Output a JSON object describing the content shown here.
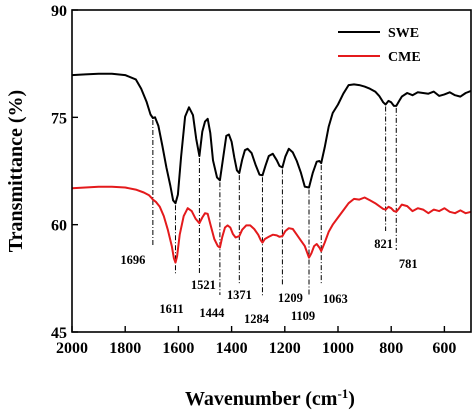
{
  "chart_data": {
    "type": "line",
    "xlabel": "Wavenumber (cm",
    "xlabel_sup": "-1",
    "xlabel_end": ")",
    "ylabel": "Transmittance (%)",
    "xlim": [
      2000,
      500
    ],
    "x_reversed": true,
    "ylim": [
      45,
      90
    ],
    "xticks": [
      "2000",
      "1800",
      "1600",
      "1400",
      "1200",
      "1000",
      "800",
      "600"
    ],
    "yticks": [
      "45",
      "60",
      "75",
      "90"
    ],
    "grid": false,
    "legend_position": "top-right",
    "series": [
      {
        "name": "SWE",
        "color": "#000000",
        "x": [
          2000,
          1950,
          1900,
          1850,
          1800,
          1760,
          1740,
          1720,
          1705,
          1696,
          1688,
          1675,
          1660,
          1645,
          1630,
          1620,
          1611,
          1602,
          1590,
          1575,
          1560,
          1545,
          1533,
          1521,
          1510,
          1500,
          1490,
          1480,
          1470,
          1455,
          1444,
          1432,
          1420,
          1410,
          1400,
          1390,
          1380,
          1371,
          1360,
          1350,
          1340,
          1325,
          1310,
          1295,
          1284,
          1272,
          1260,
          1245,
          1230,
          1220,
          1209,
          1198,
          1185,
          1170,
          1155,
          1140,
          1125,
          1109,
          1095,
          1080,
          1070,
          1063,
          1050,
          1035,
          1020,
          1000,
          980,
          960,
          940,
          920,
          900,
          880,
          860,
          845,
          830,
          821,
          810,
          800,
          790,
          781,
          770,
          760,
          740,
          720,
          700,
          680,
          660,
          640,
          620,
          600,
          580,
          560,
          540,
          520,
          500
        ],
        "y": [
          80.9,
          81.0,
          81.1,
          81.1,
          80.9,
          80.3,
          79.0,
          77.2,
          75.4,
          74.9,
          75.0,
          73.8,
          71.0,
          68.0,
          65.4,
          63.4,
          63.0,
          64.2,
          69.5,
          75.1,
          76.4,
          75.3,
          72.0,
          69.6,
          73.0,
          74.4,
          74.8,
          72.8,
          69.0,
          66.6,
          66.2,
          69.3,
          72.4,
          72.6,
          71.6,
          69.4,
          67.6,
          67.2,
          69.1,
          70.4,
          70.6,
          70.0,
          68.4,
          67.0,
          66.9,
          68.3,
          69.6,
          69.9,
          69.0,
          68.2,
          68.0,
          69.5,
          70.6,
          70.1,
          68.9,
          67.3,
          65.3,
          65.2,
          67.2,
          68.8,
          68.9,
          68.6,
          70.8,
          73.7,
          75.6,
          76.8,
          78.3,
          79.5,
          79.6,
          79.5,
          79.3,
          79.0,
          78.6,
          78.0,
          77.1,
          76.8,
          77.3,
          77.1,
          76.6,
          76.6,
          77.3,
          77.9,
          78.4,
          78.1,
          78.5,
          78.4,
          78.3,
          78.6,
          78.0,
          78.2,
          78.5,
          78.1,
          77.9,
          78.4,
          78.7
        ]
      },
      {
        "name": "CME",
        "color": "#e41a1c",
        "x": [
          2000,
          1950,
          1900,
          1850,
          1800,
          1760,
          1730,
          1710,
          1700,
          1696,
          1685,
          1670,
          1655,
          1640,
          1625,
          1617,
          1611,
          1605,
          1595,
          1580,
          1565,
          1550,
          1535,
          1521,
          1510,
          1500,
          1490,
          1480,
          1465,
          1452,
          1444,
          1435,
          1425,
          1415,
          1405,
          1395,
          1385,
          1371,
          1360,
          1345,
          1330,
          1315,
          1300,
          1290,
          1284,
          1275,
          1260,
          1245,
          1230,
          1220,
          1209,
          1198,
          1185,
          1170,
          1155,
          1140,
          1125,
          1115,
          1109,
          1100,
          1090,
          1080,
          1070,
          1063,
          1050,
          1035,
          1020,
          1000,
          980,
          960,
          940,
          920,
          900,
          880,
          860,
          845,
          830,
          821,
          810,
          800,
          790,
          781,
          770,
          760,
          740,
          720,
          700,
          680,
          660,
          640,
          620,
          600,
          580,
          560,
          540,
          520,
          500
        ],
        "y": [
          65.1,
          65.2,
          65.3,
          65.3,
          65.2,
          64.9,
          64.5,
          64.1,
          63.7,
          63.5,
          63.2,
          62.5,
          61.2,
          59.3,
          57.0,
          55.3,
          54.7,
          55.6,
          58.6,
          61.2,
          62.3,
          61.9,
          60.8,
          60.2,
          61.0,
          61.6,
          61.5,
          60.1,
          58.0,
          57.0,
          56.8,
          58.3,
          59.6,
          59.9,
          59.6,
          58.7,
          58.2,
          58.4,
          59.3,
          59.9,
          59.9,
          59.4,
          58.6,
          57.8,
          57.5,
          58.0,
          58.3,
          58.6,
          58.5,
          58.3,
          58.4,
          59.1,
          59.5,
          59.4,
          58.6,
          57.8,
          57.0,
          56.0,
          55.4,
          56.0,
          57.0,
          57.3,
          56.8,
          56.3,
          57.5,
          59.0,
          60.0,
          61.0,
          62.0,
          63.0,
          63.6,
          63.5,
          63.8,
          63.4,
          63.0,
          62.6,
          62.2,
          62.1,
          62.5,
          62.3,
          61.9,
          61.8,
          62.3,
          62.8,
          62.6,
          61.9,
          62.3,
          62.1,
          61.6,
          62.1,
          61.9,
          62.3,
          61.8,
          61.6,
          62.0,
          61.6,
          61.8
        ]
      }
    ],
    "peaks": [
      {
        "label": "1696",
        "x": 1696
      },
      {
        "label": "1611",
        "x": 1611
      },
      {
        "label": "1521",
        "x": 1521
      },
      {
        "label": "1444",
        "x": 1444
      },
      {
        "label": "1371",
        "x": 1371
      },
      {
        "label": "1284",
        "x": 1284
      },
      {
        "label": "1209",
        "x": 1209
      },
      {
        "label": "1109",
        "x": 1109
      },
      {
        "label": "1063",
        "x": 1063
      },
      {
        "label": "821",
        "x": 821
      },
      {
        "label": "781",
        "x": 781
      }
    ]
  }
}
